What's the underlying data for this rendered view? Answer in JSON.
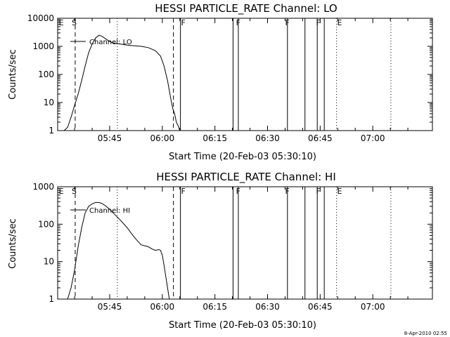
{
  "chart_data": [
    {
      "type": "line",
      "title": "HESSI PARTICLE_RATE Channel: LO",
      "xlabel": "Start Time (20-Feb-03 05:30:10)",
      "ylabel": "Counts/sec",
      "yscale": "log",
      "ylim": [
        1,
        10000
      ],
      "xlim": [
        "05:30:10",
        "07:17:00"
      ],
      "x_tick_labels": [
        "05:45",
        "06:00",
        "06:15",
        "06:30",
        "06:45",
        "07:00"
      ],
      "y_tick_labels": [
        "1",
        "10",
        "100",
        "1000",
        "10000"
      ],
      "legend": {
        "label": "Channel: LO",
        "placement": "top-left"
      },
      "series": [
        {
          "name": "Channel: LO",
          "x": [
            "05:32:00",
            "05:33:00",
            "05:34:00",
            "05:35:00",
            "05:36:00",
            "05:37:00",
            "05:38:00",
            "05:39:00",
            "05:40:00",
            "05:41:00",
            "05:42:00",
            "05:43:00",
            "05:44:00",
            "05:45:00",
            "05:46:00",
            "05:48:00",
            "05:50:00",
            "05:52:00",
            "05:54:00",
            "05:56:00",
            "05:58:00",
            "05:59:30",
            "06:00:30",
            "06:01:30",
            "06:02:30",
            "06:03:00",
            "06:03:30",
            "06:04:00",
            "06:04:30",
            "06:05:00"
          ],
          "y": [
            1,
            1.3,
            3,
            8,
            20,
            60,
            200,
            600,
            1200,
            2000,
            2500,
            2200,
            1800,
            1500,
            1300,
            1200,
            1100,
            1050,
            1000,
            900,
            700,
            450,
            200,
            60,
            12,
            6,
            4,
            2,
            1.5,
            1
          ]
        }
      ],
      "vertical_lines": [
        {
          "time": "05:35:10",
          "style": "dashed"
        },
        {
          "time": "05:47:10",
          "style": "dotted"
        },
        {
          "time": "06:03:10",
          "style": "dashed"
        },
        {
          "time": "06:05:10",
          "style": "solid"
        },
        {
          "time": "06:20:10",
          "style": "solid"
        },
        {
          "time": "06:21:40",
          "style": "solid"
        },
        {
          "time": "06:35:40",
          "style": "solid"
        },
        {
          "time": "06:40:40",
          "style": "solid"
        },
        {
          "time": "06:44:10",
          "style": "solid"
        },
        {
          "time": "06:46:10",
          "style": "solid"
        },
        {
          "time": "06:49:40",
          "style": "dotted"
        },
        {
          "time": "07:05:10",
          "style": "dotted"
        }
      ],
      "flags": [
        {
          "text": "E",
          "time": "05:30:30"
        },
        {
          "text": "S",
          "time": "05:34:10"
        },
        {
          "text": "F",
          "time": "06:05:20"
        },
        {
          "text": "F",
          "time": "06:21:00"
        },
        {
          "text": "F",
          "time": "06:35:00"
        },
        {
          "text": "F",
          "time": "06:43:50"
        },
        {
          "text": "E",
          "time": "06:49:50"
        }
      ]
    },
    {
      "type": "line",
      "title": "HESSI PARTICLE_RATE Channel: HI",
      "xlabel": "Start Time (20-Feb-03 05:30:10)",
      "ylabel": "Counts/sec",
      "yscale": "log",
      "ylim": [
        1,
        1000
      ],
      "xlim": [
        "05:30:10",
        "07:17:00"
      ],
      "x_tick_labels": [
        "05:45",
        "06:00",
        "06:15",
        "06:30",
        "06:45",
        "07:00"
      ],
      "y_tick_labels": [
        "1",
        "10",
        "100",
        "1000"
      ],
      "legend": {
        "label": "Channel: HI",
        "placement": "top-left"
      },
      "series": [
        {
          "name": "Channel: HI",
          "x": [
            "05:33:00",
            "05:34:00",
            "05:35:00",
            "05:36:00",
            "05:37:00",
            "05:38:00",
            "05:39:00",
            "05:40:00",
            "05:41:00",
            "05:42:00",
            "05:43:00",
            "05:44:00",
            "05:45:00",
            "05:46:00",
            "05:48:00",
            "05:50:00",
            "05:51:00",
            "05:52:00",
            "05:53:00",
            "05:54:00",
            "05:56:00",
            "05:57:00",
            "05:58:00",
            "05:59:00",
            "05:59:30",
            "06:00:00",
            "06:00:30",
            "06:01:00",
            "06:01:30",
            "06:02:00"
          ],
          "y": [
            1,
            2,
            6,
            25,
            80,
            200,
            300,
            350,
            380,
            380,
            350,
            300,
            250,
            200,
            130,
            80,
            60,
            45,
            35,
            28,
            25,
            22,
            20,
            21,
            20,
            15,
            8,
            4,
            2,
            1
          ]
        }
      ],
      "vertical_lines": [
        {
          "time": "05:35:10",
          "style": "dashed"
        },
        {
          "time": "05:47:10",
          "style": "dotted"
        },
        {
          "time": "06:03:10",
          "style": "dashed"
        },
        {
          "time": "06:05:10",
          "style": "solid"
        },
        {
          "time": "06:20:10",
          "style": "solid"
        },
        {
          "time": "06:21:40",
          "style": "solid"
        },
        {
          "time": "06:35:40",
          "style": "solid"
        },
        {
          "time": "06:40:40",
          "style": "solid"
        },
        {
          "time": "06:44:10",
          "style": "solid"
        },
        {
          "time": "06:46:10",
          "style": "solid"
        },
        {
          "time": "06:49:40",
          "style": "dotted"
        },
        {
          "time": "07:05:10",
          "style": "dotted"
        }
      ],
      "flags": [
        {
          "text": "E",
          "time": "05:30:30"
        },
        {
          "text": "S",
          "time": "05:34:10"
        },
        {
          "text": "F",
          "time": "06:05:20"
        },
        {
          "text": "F",
          "time": "06:21:00"
        },
        {
          "text": "F",
          "time": "06:35:00"
        },
        {
          "text": "F",
          "time": "06:43:50"
        },
        {
          "text": "E",
          "time": "06:49:50"
        }
      ]
    }
  ],
  "timestamp": "8-Apr-2010 02:55"
}
